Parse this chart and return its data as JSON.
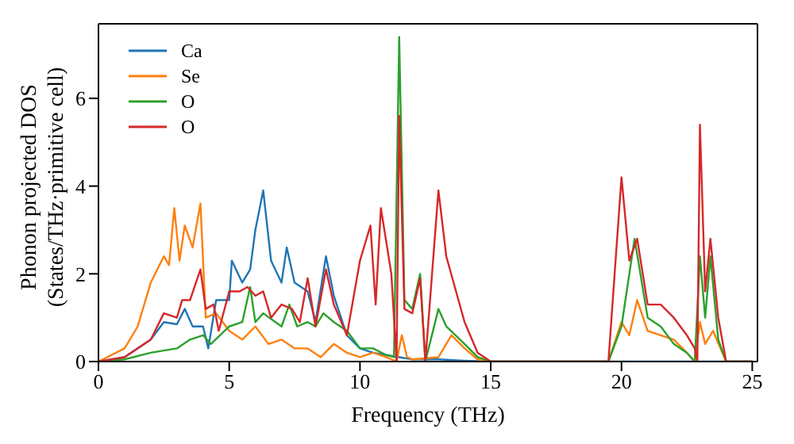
{
  "chart_data": {
    "type": "line",
    "xlabel": "Frequency (THz)",
    "ylabel": "Phonon projected DOS\n(States/THz·primitive cell)",
    "xlim": [
      0,
      25.2
    ],
    "ylim": [
      0,
      7.7
    ],
    "xticks": [
      0,
      5,
      10,
      15,
      20,
      25
    ],
    "yticks": [
      0,
      2,
      4,
      6
    ],
    "grid": false,
    "legend": "top left",
    "marker": "none",
    "line_style": "solid",
    "series": [
      {
        "name": "Ca",
        "color": "#1f77b4",
        "x": [
          0,
          1,
          2,
          2.5,
          3,
          3.3,
          3.6,
          4,
          4.2,
          4.5,
          5,
          5.1,
          5.5,
          5.8,
          6,
          6.3,
          6.6,
          7,
          7.2,
          7.5,
          8,
          8.3,
          8.7,
          9,
          9.5,
          10,
          10.5,
          11,
          11.5,
          12,
          13,
          14,
          15,
          20,
          25
        ],
        "values": [
          0,
          0.1,
          0.5,
          0.9,
          0.85,
          1.2,
          0.8,
          0.8,
          0.3,
          1.4,
          1.4,
          2.3,
          1.8,
          2.1,
          3.0,
          3.9,
          2.3,
          1.8,
          2.6,
          1.8,
          1.6,
          0.9,
          2.4,
          1.5,
          0.6,
          0.3,
          0.2,
          0.15,
          0.1,
          0.05,
          0.05,
          0.02,
          0,
          0,
          0
        ]
      },
      {
        "name": "Se",
        "color": "#ff7f0e",
        "x": [
          0,
          1,
          1.5,
          2,
          2.5,
          2.7,
          2.9,
          3.1,
          3.3,
          3.6,
          3.9,
          4.1,
          4.5,
          5,
          5.5,
          6,
          6.5,
          7,
          7.5,
          8,
          8.5,
          9,
          9.5,
          10,
          10.5,
          11,
          11.4,
          11.6,
          11.8,
          12,
          13,
          13.5,
          14,
          14.5,
          15,
          19.5,
          20,
          20.3,
          20.6,
          21,
          22,
          22.5,
          22.8,
          23,
          23.2,
          23.5,
          24,
          25
        ],
        "values": [
          0,
          0.3,
          0.8,
          1.8,
          2.4,
          2.2,
          3.5,
          2.3,
          3.1,
          2.6,
          3.6,
          1.0,
          1.1,
          0.7,
          0.5,
          0.8,
          0.4,
          0.5,
          0.3,
          0.3,
          0.1,
          0.4,
          0.2,
          0.1,
          0.2,
          0.1,
          0,
          0.6,
          0.1,
          0.05,
          0.1,
          0.6,
          0.3,
          0.05,
          0,
          0,
          0.9,
          0.6,
          1.4,
          0.7,
          0.5,
          0.2,
          0,
          0.9,
          0.4,
          0.7,
          0,
          0
        ]
      },
      {
        "name": "O",
        "color": "#2ca02c",
        "x": [
          0,
          1,
          2,
          3,
          3.5,
          4,
          4.3,
          5,
          5.5,
          5.8,
          6,
          6.3,
          7,
          7.3,
          7.6,
          8,
          8.3,
          8.6,
          9,
          9.5,
          10,
          10.5,
          11,
          11.3,
          11.5,
          11.7,
          12,
          12.3,
          12.5,
          13,
          13.3,
          14,
          14.5,
          15,
          19.5,
          20,
          20.5,
          21,
          21.5,
          22,
          22.5,
          22.8,
          23,
          23.2,
          23.4,
          23.7,
          24,
          25
        ],
        "values": [
          0,
          0.05,
          0.2,
          0.3,
          0.5,
          0.6,
          0.4,
          0.8,
          0.9,
          1.7,
          0.9,
          1.1,
          0.8,
          1.3,
          0.8,
          0.9,
          0.8,
          1.1,
          0.9,
          0.7,
          0.3,
          0.3,
          0.15,
          0.1,
          7.4,
          1.4,
          1.2,
          2.0,
          0,
          1.2,
          0.8,
          0.4,
          0.1,
          0,
          0,
          0.8,
          2.8,
          1.0,
          0.8,
          0.4,
          0.2,
          0,
          2.4,
          1.0,
          2.4,
          0.5,
          0,
          0
        ]
      },
      {
        "name": "O",
        "color": "#d62728",
        "x": [
          0,
          1,
          2,
          2.5,
          3,
          3.2,
          3.5,
          3.9,
          4.1,
          4.4,
          4.6,
          5,
          5.4,
          5.7,
          6,
          6.3,
          6.6,
          7,
          7.4,
          7.7,
          8,
          8.3,
          8.7,
          9,
          9.5,
          10,
          10.4,
          10.6,
          10.8,
          11.2,
          11.4,
          11.5,
          11.7,
          12,
          12.3,
          12.5,
          13,
          13.3,
          14,
          14.5,
          15,
          19.5,
          20,
          20.3,
          20.6,
          21,
          21.5,
          22,
          22.5,
          22.8,
          22.9,
          23,
          23.2,
          23.4,
          23.7,
          24,
          25
        ],
        "values": [
          0,
          0.1,
          0.5,
          1.1,
          1.0,
          1.4,
          1.4,
          2.1,
          1.2,
          1.3,
          0.7,
          1.6,
          1.6,
          1.7,
          1.5,
          1.6,
          1.0,
          1.3,
          1.2,
          0.9,
          1.9,
          0.8,
          2.1,
          1.3,
          0.6,
          2.3,
          3.1,
          1.3,
          3.5,
          2.0,
          0,
          5.6,
          1.2,
          1.1,
          1.9,
          0,
          3.9,
          2.4,
          0.9,
          0.2,
          0,
          0,
          4.2,
          2.3,
          2.8,
          1.3,
          1.3,
          1.0,
          0.6,
          0.3,
          0,
          5.4,
          1.6,
          2.8,
          1.0,
          0,
          0
        ]
      }
    ]
  }
}
